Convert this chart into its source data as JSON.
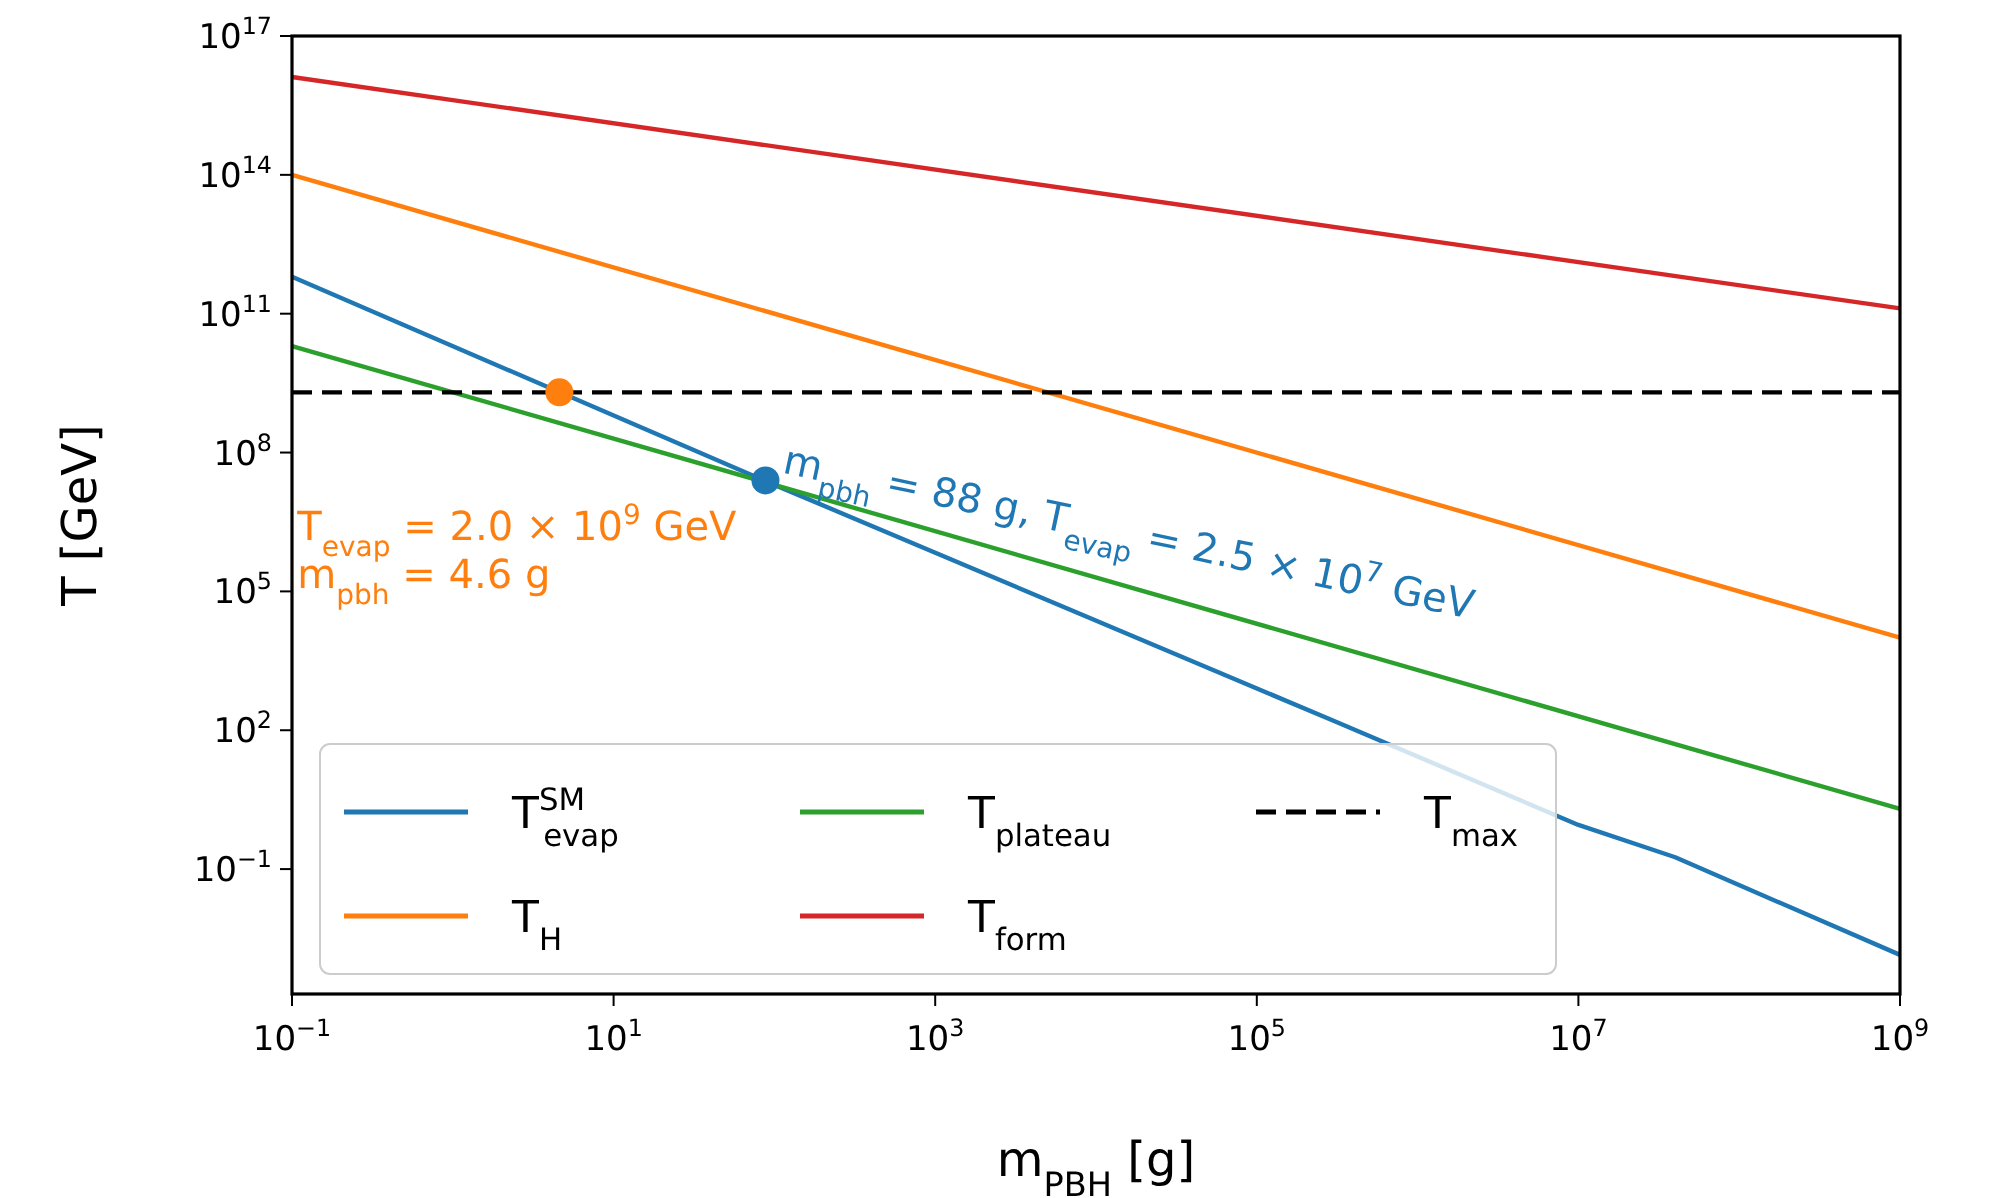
{
  "chart_data": {
    "type": "line",
    "xlabel": "m$_{PBH}$ [g]",
    "ylabel": "T [GeV]",
    "log": "xy",
    "xlim": [
      0.1,
      1000000000
    ],
    "ylim": [
      0.0002,
      100000000000000000
    ],
    "xticks": [
      {
        "value": 0.1,
        "label": "10$^{−1}$"
      },
      {
        "value": 10,
        "label": "10$^{1}$"
      },
      {
        "value": 1000,
        "label": "10$^{3}$"
      },
      {
        "value": 100000,
        "label": "10$^{5}$"
      },
      {
        "value": 10000000,
        "label": "10$^{7}$"
      },
      {
        "value": 1000000000,
        "label": "10$^{9}$"
      }
    ],
    "yticks": [
      {
        "value": 0.1,
        "label": "10$^{−1}$"
      },
      {
        "value": 100,
        "label": "10$^{2}$"
      },
      {
        "value": 100000,
        "label": "10$^{5}$"
      },
      {
        "value": 100000000,
        "label": "10$^{8}$"
      },
      {
        "value": 100000000000,
        "label": "10$^{11}$"
      },
      {
        "value": 100000000000000,
        "label": "10$^{14}$"
      },
      {
        "value": 100000000000000000,
        "label": "10$^{17}$"
      }
    ],
    "grid": false,
    "legend": "bottom left",
    "marker": "none",
    "series": [
      {
        "name": "T$^{SM}$$_{evap}$",
        "color": "#1f77b4",
        "x": [
          0.1,
          100,
          300000,
          10000000,
          40000000,
          1000000000
        ],
        "values": [
          630000000000,
          20000000,
          160,
          0.9,
          0.18,
          0.0014
        ]
      },
      {
        "name": "T$_{H}$",
        "color": "#ff7f0e",
        "x": [
          0.1,
          1000000000
        ],
        "values": [
          100000000000000,
          10000
        ]
      },
      {
        "name": "T$_{plateau}$",
        "color": "#2ca02c",
        "x": [
          0.1,
          1000000000
        ],
        "values": [
          20000000000,
          2
        ]
      },
      {
        "name": "T$_{form}$",
        "color": "#d62728",
        "x": [
          0.1,
          1000000000
        ],
        "values": [
          13000000000000000,
          130000000000
        ]
      },
      {
        "name": "T$_{max}$",
        "color": "#000000",
        "line_style": "dashed",
        "x": [
          0.1,
          1000000000
        ],
        "values": [
          2000000000,
          2000000000
        ]
      },
      {
        "type": "scatter",
        "marker": "circle",
        "color": "#ff7f0e",
        "x": [
          4.6
        ],
        "values": [
          2000000000
        ]
      },
      {
        "type": "scatter",
        "marker": "circle",
        "color": "#1f77b4",
        "x": [
          88
        ],
        "values": [
          25000000
        ]
      }
    ],
    "annotations": [
      {
        "text": "T$_{evap}$ = 2.0 × 10$^{9}$ GeV",
        "x": 4.6,
        "y": 2000000000
      },
      "m$_{pbh}$ = 4.6 g",
      {
        "text": "m$_{pbh}$ = 88 g,  T$_{evap}$ = 2.5 × 10$^{7}$ GeV",
        "x": 88,
        "y": 25000000
      }
    ]
  }
}
